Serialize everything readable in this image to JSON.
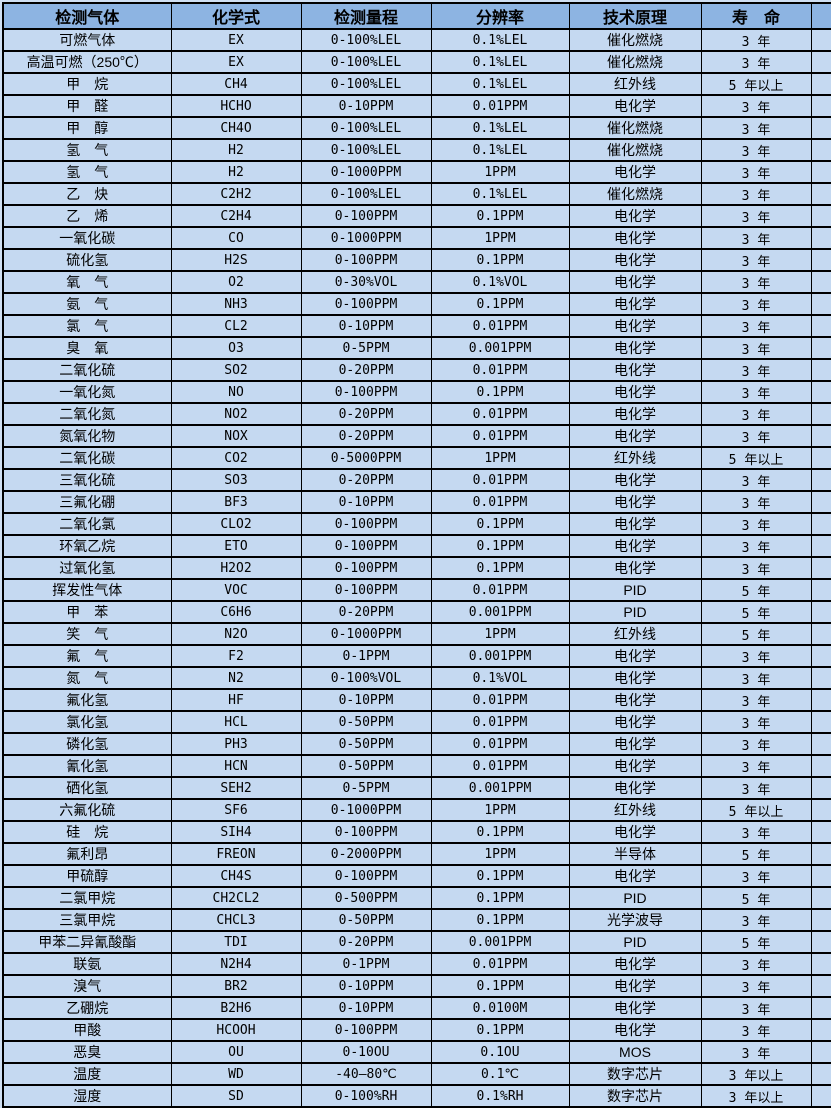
{
  "colors": {
    "header_bg": "#8db4e2",
    "row_bg": "#c5d9f1",
    "border": "#000000",
    "page_bg": "#cfdff2",
    "text": "#000000"
  },
  "table": {
    "columns": [
      "检测气体",
      "化学式",
      "检测量程",
      "分辨率",
      "技术原理",
      "寿　命"
    ],
    "rows": [
      {
        "gas": "可燃气体",
        "formula": "EX",
        "range": "0-100%LEL",
        "resolution": "0.1%LEL",
        "principle": "催化燃烧",
        "lifespan": "3 年"
      },
      {
        "gas": "高温可燃（250℃）",
        "formula": "EX",
        "range": "0-100%LEL",
        "resolution": "0.1%LEL",
        "principle": "催化燃烧",
        "lifespan": "3 年"
      },
      {
        "gas": "甲　烷",
        "formula": "CH4",
        "range": "0-100%LEL",
        "resolution": "0.1%LEL",
        "principle": "红外线",
        "lifespan": "5 年以上"
      },
      {
        "gas": "甲　醛",
        "formula": "HCHO",
        "range": "0-10PPM",
        "resolution": "0.01PPM",
        "principle": "电化学",
        "lifespan": "3 年"
      },
      {
        "gas": "甲　醇",
        "formula": "CH4O",
        "range": "0-100%LEL",
        "resolution": "0.1%LEL",
        "principle": "催化燃烧",
        "lifespan": "3 年"
      },
      {
        "gas": "氢　气",
        "formula": "H2",
        "range": "0-100%LEL",
        "resolution": "0.1%LEL",
        "principle": "催化燃烧",
        "lifespan": "3 年"
      },
      {
        "gas": "氢　气",
        "formula": "H2",
        "range": "0-1000PPM",
        "resolution": "1PPM",
        "principle": "电化学",
        "lifespan": "3 年"
      },
      {
        "gas": "乙　炔",
        "formula": "C2H2",
        "range": "0-100%LEL",
        "resolution": "0.1%LEL",
        "principle": "催化燃烧",
        "lifespan": "3 年"
      },
      {
        "gas": "乙　烯",
        "formula": "C2H4",
        "range": "0-100PPM",
        "resolution": "0.1PPM",
        "principle": "电化学",
        "lifespan": "3 年"
      },
      {
        "gas": "一氧化碳",
        "formula": "CO",
        "range": "0-1000PPM",
        "resolution": "1PPM",
        "principle": "电化学",
        "lifespan": "3 年"
      },
      {
        "gas": "硫化氢",
        "formula": "H2S",
        "range": "0-100PPM",
        "resolution": "0.1PPM",
        "principle": "电化学",
        "lifespan": "3 年"
      },
      {
        "gas": "氧　气",
        "formula": "O2",
        "range": "0-30%VOL",
        "resolution": "0.1%VOL",
        "principle": "电化学",
        "lifespan": "3 年"
      },
      {
        "gas": "氨　气",
        "formula": "NH3",
        "range": "0-100PPM",
        "resolution": "0.1PPM",
        "principle": "电化学",
        "lifespan": "3 年"
      },
      {
        "gas": "氯　气",
        "formula": "CL2",
        "range": "0-10PPM",
        "resolution": "0.01PPM",
        "principle": "电化学",
        "lifespan": "3 年"
      },
      {
        "gas": "臭　氧",
        "formula": "O3",
        "range": "0-5PPM",
        "resolution": "0.001PPM",
        "principle": "电化学",
        "lifespan": "3 年"
      },
      {
        "gas": "二氧化硫",
        "formula": "SO2",
        "range": "0-20PPM",
        "resolution": "0.01PPM",
        "principle": "电化学",
        "lifespan": "3 年"
      },
      {
        "gas": "一氧化氮",
        "formula": "NO",
        "range": "0-100PPM",
        "resolution": "0.1PPM",
        "principle": "电化学",
        "lifespan": "3 年"
      },
      {
        "gas": "二氧化氮",
        "formula": "NO2",
        "range": "0-20PPM",
        "resolution": "0.01PPM",
        "principle": "电化学",
        "lifespan": "3 年"
      },
      {
        "gas": "氮氧化物",
        "formula": "NOX",
        "range": "0-20PPM",
        "resolution": "0.01PPM",
        "principle": "电化学",
        "lifespan": "3 年"
      },
      {
        "gas": "二氧化碳",
        "formula": "CO2",
        "range": "0-5000PPM",
        "resolution": "1PPM",
        "principle": "红外线",
        "lifespan": "5 年以上"
      },
      {
        "gas": "三氧化硫",
        "formula": "SO3",
        "range": "0-20PPM",
        "resolution": "0.01PPM",
        "principle": "电化学",
        "lifespan": "3 年"
      },
      {
        "gas": "三氟化硼",
        "formula": "BF3",
        "range": "0-10PPM",
        "resolution": "0.01PPM",
        "principle": "电化学",
        "lifespan": "3 年"
      },
      {
        "gas": "二氧化氯",
        "formula": "CLO2",
        "range": "0-100PPM",
        "resolution": "0.1PPM",
        "principle": "电化学",
        "lifespan": "3 年"
      },
      {
        "gas": "环氧乙烷",
        "formula": "ETO",
        "range": "0-100PPM",
        "resolution": "0.1PPM",
        "principle": "电化学",
        "lifespan": "3 年"
      },
      {
        "gas": "过氧化氢",
        "formula": "H2O2",
        "range": "0-100PPM",
        "resolution": "0.1PPM",
        "principle": "电化学",
        "lifespan": "3 年"
      },
      {
        "gas": "挥发性气体",
        "formula": "VOC",
        "range": "0-100PPM",
        "resolution": "0.01PPM",
        "principle": "PID",
        "lifespan": "5 年"
      },
      {
        "gas": "甲　苯",
        "formula": "C6H6",
        "range": "0-20PPM",
        "resolution": "0.001PPM",
        "principle": "PID",
        "lifespan": "5 年"
      },
      {
        "gas": "笑　气",
        "formula": "N2O",
        "range": "0-1000PPM",
        "resolution": "1PPM",
        "principle": "红外线",
        "lifespan": "5 年"
      },
      {
        "gas": "氟　气",
        "formula": "F2",
        "range": "0-1PPM",
        "resolution": "0.001PPM",
        "principle": "电化学",
        "lifespan": "3 年"
      },
      {
        "gas": "氮　气",
        "formula": "N2",
        "range": "0-100%VOL",
        "resolution": "0.1%VOL",
        "principle": "电化学",
        "lifespan": "3 年"
      },
      {
        "gas": "氟化氢",
        "formula": "HF",
        "range": "0-10PPM",
        "resolution": "0.01PPM",
        "principle": "电化学",
        "lifespan": "3 年"
      },
      {
        "gas": "氯化氢",
        "formula": "HCL",
        "range": "0-50PPM",
        "resolution": "0.01PPM",
        "principle": "电化学",
        "lifespan": "3 年"
      },
      {
        "gas": "磷化氢",
        "formula": "PH3",
        "range": "0-50PPM",
        "resolution": "0.01PPM",
        "principle": "电化学",
        "lifespan": "3 年"
      },
      {
        "gas": "氰化氢",
        "formula": "HCN",
        "range": "0-50PPM",
        "resolution": "0.01PPM",
        "principle": "电化学",
        "lifespan": "3 年"
      },
      {
        "gas": "硒化氢",
        "formula": "SEH2",
        "range": "0-5PPM",
        "resolution": "0.001PPM",
        "principle": "电化学",
        "lifespan": "3 年"
      },
      {
        "gas": "六氟化硫",
        "formula": "SF6",
        "range": "0-1000PPM",
        "resolution": "1PPM",
        "principle": "红外线",
        "lifespan": "5 年以上"
      },
      {
        "gas": "硅　烷",
        "formula": "SIH4",
        "range": "0-100PPM",
        "resolution": "0.1PPM",
        "principle": "电化学",
        "lifespan": "3 年"
      },
      {
        "gas": "氟利昂",
        "formula": "FREON",
        "range": "0-2000PPM",
        "resolution": "1PPM",
        "principle": "半导体",
        "lifespan": "5 年"
      },
      {
        "gas": "甲硫醇",
        "formula": "CH4S",
        "range": "0-100PPM",
        "resolution": "0.1PPM",
        "principle": "电化学",
        "lifespan": "3 年"
      },
      {
        "gas": "二氯甲烷",
        "formula": "CH2CL2",
        "range": "0-500PPM",
        "resolution": "0.1PPM",
        "principle": "PID",
        "lifespan": "5 年"
      },
      {
        "gas": "三氯甲烷",
        "formula": "CHCL3",
        "range": "0-50PPM",
        "resolution": "0.1PPM",
        "principle": "光学波导",
        "lifespan": "3 年"
      },
      {
        "gas": "甲苯二异氰酸酯",
        "formula": "TDI",
        "range": "0-20PPM",
        "resolution": "0.001PPM",
        "principle": "PID",
        "lifespan": "5 年"
      },
      {
        "gas": "联氨",
        "formula": "N2H4",
        "range": "0-1PPM",
        "resolution": "0.01PPM",
        "principle": "电化学",
        "lifespan": "3 年"
      },
      {
        "gas": "溴气",
        "formula": "BR2",
        "range": "0-10PPM",
        "resolution": "0.1PPM",
        "principle": "电化学",
        "lifespan": "3 年"
      },
      {
        "gas": "乙硼烷",
        "formula": "B2H6",
        "range": "0-10PPM",
        "resolution": "0.0100M",
        "principle": "电化学",
        "lifespan": "3 年"
      },
      {
        "gas": "甲酸",
        "formula": "HCOOH",
        "range": "0-100PPM",
        "resolution": "0.1PPM",
        "principle": "电化学",
        "lifespan": "3 年"
      },
      {
        "gas": "恶臭",
        "formula": "OU",
        "range": "0-10OU",
        "resolution": "0.1OU",
        "principle": "MOS",
        "lifespan": "3 年"
      },
      {
        "gas": "温度",
        "formula": "WD",
        "range": "-40—80℃",
        "resolution": "0.1℃",
        "principle": "数字芯片",
        "lifespan": "3 年以上"
      },
      {
        "gas": "湿度",
        "formula": "SD",
        "range": "0-100%RH",
        "resolution": "0.1%RH",
        "principle": "数字芯片",
        "lifespan": "3 年以上"
      }
    ]
  }
}
